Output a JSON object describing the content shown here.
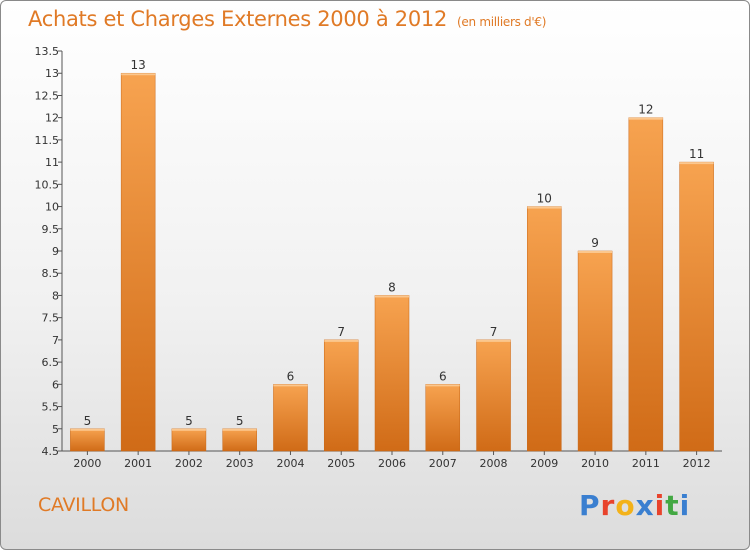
{
  "header": {
    "title": "Achats et Charges Externes 2000 à 2012",
    "unit": "(en milliers d'€)"
  },
  "commune": "CAVILLON",
  "brand": {
    "letters": [
      "P",
      "r",
      "o",
      "x",
      "i",
      "t",
      "i"
    ],
    "colors": [
      "#3a7fd0",
      "#e8432c",
      "#f3b21a",
      "#3a7fd0",
      "#e8432c",
      "#43a843",
      "#3a7fd0"
    ]
  },
  "chart_data": {
    "type": "bar",
    "title": "Achats et Charges Externes 2000 à 2012",
    "categories": [
      "2000",
      "2001",
      "2002",
      "2003",
      "2004",
      "2005",
      "2006",
      "2007",
      "2008",
      "2009",
      "2010",
      "2011",
      "2012"
    ],
    "values": [
      5,
      13,
      5,
      5,
      6,
      7,
      8,
      6,
      7,
      10,
      9,
      12,
      11
    ],
    "data_labels": [
      "5",
      "13",
      "5",
      "5",
      "6",
      "7",
      "8",
      "6",
      "7",
      "10",
      "9",
      "12",
      "11"
    ],
    "ylim": [
      4.5,
      13.5
    ],
    "y_ticks": [
      "4.5",
      "5",
      "5.5",
      "6",
      "6.5",
      "7",
      "7.5",
      "8",
      "8.5",
      "9",
      "9.5",
      "10",
      "10.5",
      "11",
      "11.5",
      "12",
      "12.5",
      "13",
      "13.5"
    ],
    "grid": false,
    "bar_color": "#f0943d"
  }
}
